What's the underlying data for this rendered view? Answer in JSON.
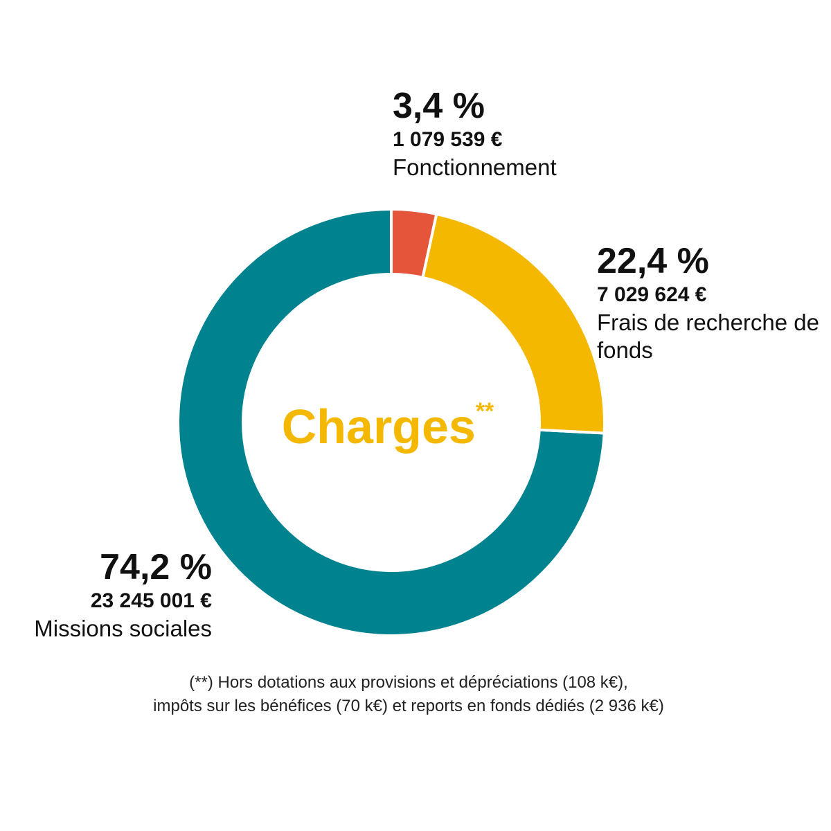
{
  "chart_data": {
    "type": "donut",
    "title": "Charges",
    "title_marker": "**",
    "categories": [
      "Fonctionnement",
      "Frais de recherche de fonds",
      "Missions sociales"
    ],
    "values": [
      3.4,
      22.4,
      74.2
    ],
    "value_labels": [
      "3,4 %",
      "22,4 %",
      "74,2 %"
    ],
    "amounts": [
      1079539,
      7029624,
      23245001
    ],
    "amount_labels": [
      "1 079 539 €",
      "7 029 624 €",
      "23 245 001 €"
    ],
    "colors": [
      "#e4553a",
      "#f5b800",
      "#00838f"
    ],
    "note": [
      "(**) Hors dotations aux provisions et dépréciations (108 k€),",
      "impôts sur les bénéfices (70 k€) et reports en fonds dédiés (2 936 k€)"
    ]
  }
}
